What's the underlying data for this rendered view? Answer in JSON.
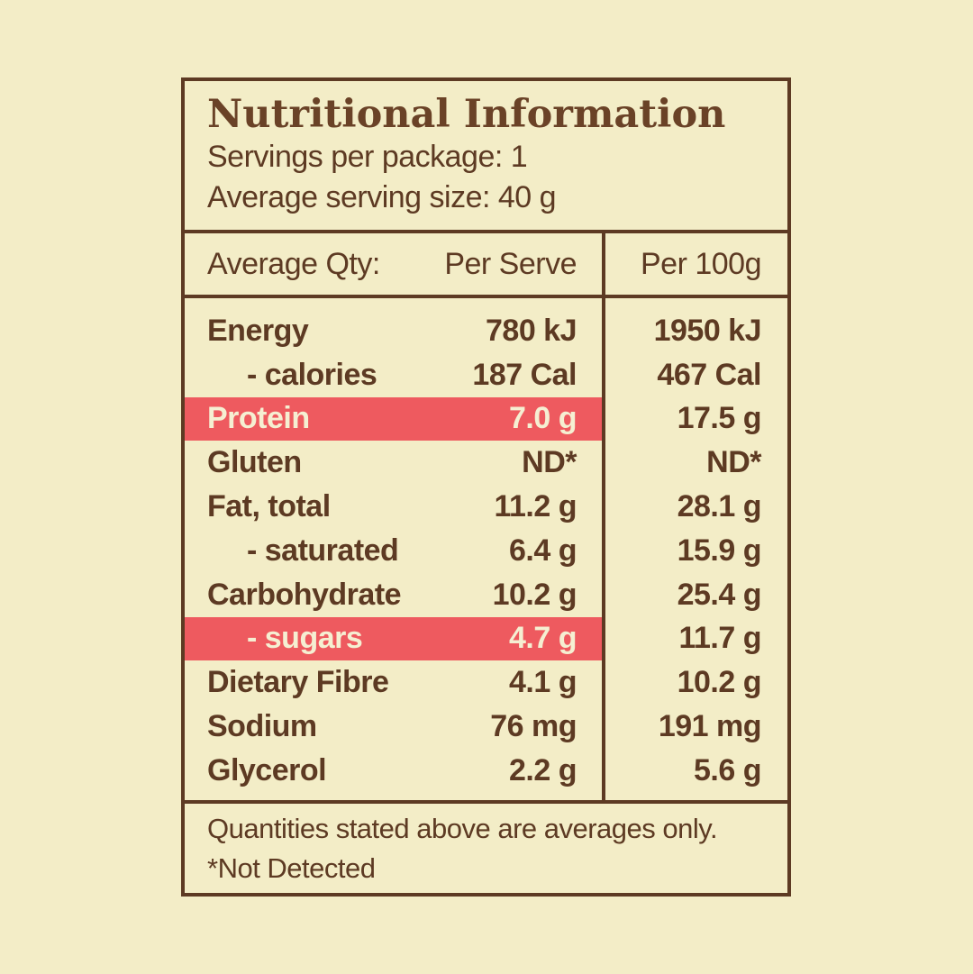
{
  "colors": {
    "bg": "#f3edc7",
    "brown": "#5d3a23",
    "title-brown": "#6a4227",
    "highlight": "#ee5a5f",
    "highlight-text": "#f5efd2"
  },
  "panel": {
    "title": "Nutritional Information",
    "servings_line": "Servings per package: 1",
    "serving_size_line": "Average serving size: 40 g",
    "columns": {
      "label": "Average Qty:",
      "per_serve": "Per Serve",
      "per_100g": "Per 100g"
    },
    "rows": [
      {
        "label": "Energy",
        "per_serve": "780 kJ",
        "per_100g": "1950 kJ",
        "indent": false,
        "highlight": false
      },
      {
        "label": "- calories",
        "per_serve": "187 Cal",
        "per_100g": "467 Cal",
        "indent": true,
        "highlight": false
      },
      {
        "label": "Protein",
        "per_serve": "7.0 g",
        "per_100g": "17.5 g",
        "indent": false,
        "highlight": true
      },
      {
        "label": "Gluten",
        "per_serve": "ND*",
        "per_100g": "ND*",
        "indent": false,
        "highlight": false
      },
      {
        "label": "Fat, total",
        "per_serve": "11.2 g",
        "per_100g": "28.1 g",
        "indent": false,
        "highlight": false
      },
      {
        "label": "- saturated",
        "per_serve": "6.4 g",
        "per_100g": "15.9 g",
        "indent": true,
        "highlight": false
      },
      {
        "label": "Carbohydrate",
        "per_serve": "10.2 g",
        "per_100g": "25.4 g",
        "indent": false,
        "highlight": false
      },
      {
        "label": "- sugars",
        "per_serve": "4.7 g",
        "per_100g": "11.7 g",
        "indent": true,
        "highlight": true
      },
      {
        "label": "Dietary Fibre",
        "per_serve": "4.1 g",
        "per_100g": "10.2 g",
        "indent": false,
        "highlight": false
      },
      {
        "label": "Sodium",
        "per_serve": "76 mg",
        "per_100g": "191 mg",
        "indent": false,
        "highlight": false
      },
      {
        "label": "Glycerol",
        "per_serve": "2.2 g",
        "per_100g": "5.6 g",
        "indent": false,
        "highlight": false
      }
    ],
    "footnotes": [
      "Quantities stated above are averages only.",
      "*Not Detected"
    ]
  }
}
